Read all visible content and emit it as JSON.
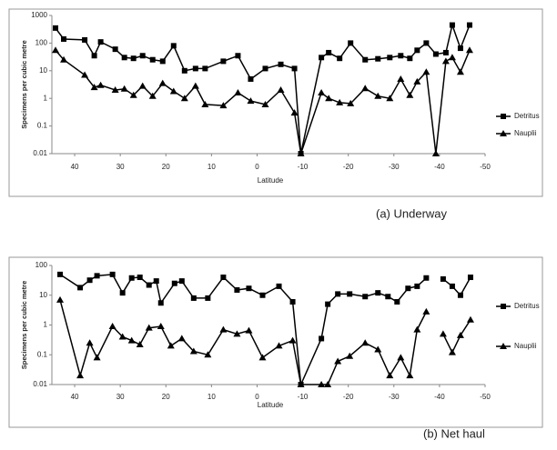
{
  "chart_data": [
    {
      "type": "line",
      "caption": "(a) Underway",
      "xlabel": "Latitude",
      "ylabel": "Specimens per cubic metre",
      "yscale": "log",
      "ylim": [
        0.01,
        1000
      ],
      "yticks": [
        0.01,
        0.1,
        1,
        10,
        100,
        1000
      ],
      "xlim": [
        45,
        -50
      ],
      "xticks": [
        40,
        30,
        20,
        10,
        0,
        -10,
        -20,
        -30,
        -40,
        -50
      ],
      "legend": "right",
      "grid": false,
      "series": [
        {
          "name": "Detritus",
          "color": "#000000",
          "marker": "square",
          "x": [
            44.2,
            42.4,
            37.8,
            35.7,
            34.3,
            31.1,
            29.1,
            27.1,
            25.1,
            22.9,
            20.7,
            18.3,
            15.9,
            13.5,
            11.4,
            7.4,
            4.2,
            1.4,
            -1.8,
            -5.2,
            -8.2,
            -9.6,
            -14.1,
            -15.7,
            -18.1,
            -20.5,
            -23.7,
            -26.5,
            -29.1,
            -31.5,
            -33.5,
            -35.1,
            -37.1,
            -39.2,
            -41.4,
            -42.8,
            -44.6,
            -46.6
          ],
          "values": [
            350,
            140,
            130,
            35,
            110,
            60,
            30,
            28,
            35,
            25,
            22,
            80,
            10,
            12,
            12,
            22,
            35,
            5,
            12,
            17,
            12,
            0.01,
            30,
            45,
            28,
            100,
            25,
            27,
            30,
            35,
            28,
            55,
            100,
            40,
            45,
            450,
            65,
            450
          ]
        },
        {
          "name": "Nauplii",
          "color": "#000000",
          "marker": "triangle",
          "x": [
            44.2,
            42.4,
            37.8,
            35.7,
            34.3,
            31.1,
            29.1,
            27.1,
            25.1,
            22.9,
            20.7,
            18.3,
            15.9,
            13.5,
            11.4,
            7.4,
            4.2,
            1.4,
            -1.8,
            -5.2,
            -8.2,
            -9.6,
            -14.1,
            -15.7,
            -18.1,
            -20.5,
            -23.7,
            -26.5,
            -29.1,
            -31.5,
            -33.5,
            -35.1,
            -37.1,
            -39.2,
            -41.4,
            -42.8,
            -44.6,
            -46.6
          ],
          "values": [
            55,
            25,
            7,
            2.5,
            3,
            2,
            2.2,
            1.3,
            2.8,
            1.2,
            3.5,
            1.8,
            1,
            2.8,
            0.6,
            0.55,
            1.6,
            0.8,
            0.6,
            2,
            0.3,
            0.01,
            1.6,
            1,
            0.7,
            0.65,
            2.3,
            1.2,
            1,
            5,
            1.3,
            4,
            9,
            0.01,
            22,
            30,
            9,
            55
          ]
        }
      ]
    },
    {
      "type": "line",
      "caption": "(b) Net haul",
      "xlabel": "Latitude",
      "ylabel": "Specimens per cubic metre",
      "yscale": "log",
      "ylim": [
        0.01,
        100
      ],
      "yticks": [
        0.01,
        0.1,
        1,
        10,
        100
      ],
      "xlim": [
        45,
        -50
      ],
      "xticks": [
        40,
        30,
        20,
        10,
        0,
        -10,
        -20,
        -30,
        -40,
        -50
      ],
      "legend": "right",
      "grid": false,
      "series": [
        {
          "name": "Detritus",
          "color": "#000000",
          "marker": "square",
          "x": [
            43.2,
            38.8,
            36.7,
            35.1,
            31.7,
            29.5,
            27.5,
            25.7,
            23.7,
            22.1,
            21.1,
            18.1,
            16.5,
            13.9,
            10.8,
            7.4,
            4.4,
            1.8,
            -1.2,
            -4.8,
            -7.8,
            -9.6,
            -14.1,
            -15.5,
            -17.7,
            -20.3,
            -23.7,
            -26.5,
            -28.7,
            -30.7,
            -33.1,
            -35.1,
            -37.1,
            null,
            -40.8,
            -42.8,
            -44.6,
            -46.8
          ],
          "values": [
            50,
            18,
            32,
            45,
            50,
            12,
            38,
            40,
            22,
            30,
            5.5,
            25,
            30,
            8,
            8,
            40,
            15,
            17,
            10,
            20,
            6,
            0.01,
            0.35,
            5,
            11,
            11,
            9,
            12,
            9,
            6,
            17,
            20,
            38,
            null,
            35,
            20,
            10,
            40
          ]
        },
        {
          "name": "Nauplii",
          "color": "#000000",
          "marker": "triangle",
          "x": [
            43.2,
            38.8,
            36.7,
            35.1,
            31.7,
            29.5,
            27.5,
            25.7,
            23.7,
            21.1,
            18.9,
            16.5,
            13.9,
            10.8,
            7.4,
            4.4,
            1.8,
            -1.2,
            -4.8,
            -7.8,
            -9.6,
            -14.1,
            -15.5,
            -17.7,
            -20.3,
            -23.7,
            -26.5,
            -29.1,
            -31.5,
            -33.5,
            -35.1,
            -37.1,
            null,
            -40.8,
            -42.8,
            -44.6,
            -46.8
          ],
          "values": [
            7,
            0.02,
            0.25,
            0.08,
            0.9,
            0.4,
            0.3,
            0.22,
            0.8,
            0.9,
            0.2,
            0.35,
            0.13,
            0.1,
            0.7,
            0.5,
            0.65,
            0.08,
            0.2,
            0.3,
            0.01,
            0.01,
            0.01,
            0.06,
            0.09,
            0.25,
            0.15,
            0.02,
            0.08,
            0.02,
            0.7,
            2.8,
            null,
            0.5,
            0.12,
            0.45,
            1.5
          ]
        }
      ]
    }
  ]
}
